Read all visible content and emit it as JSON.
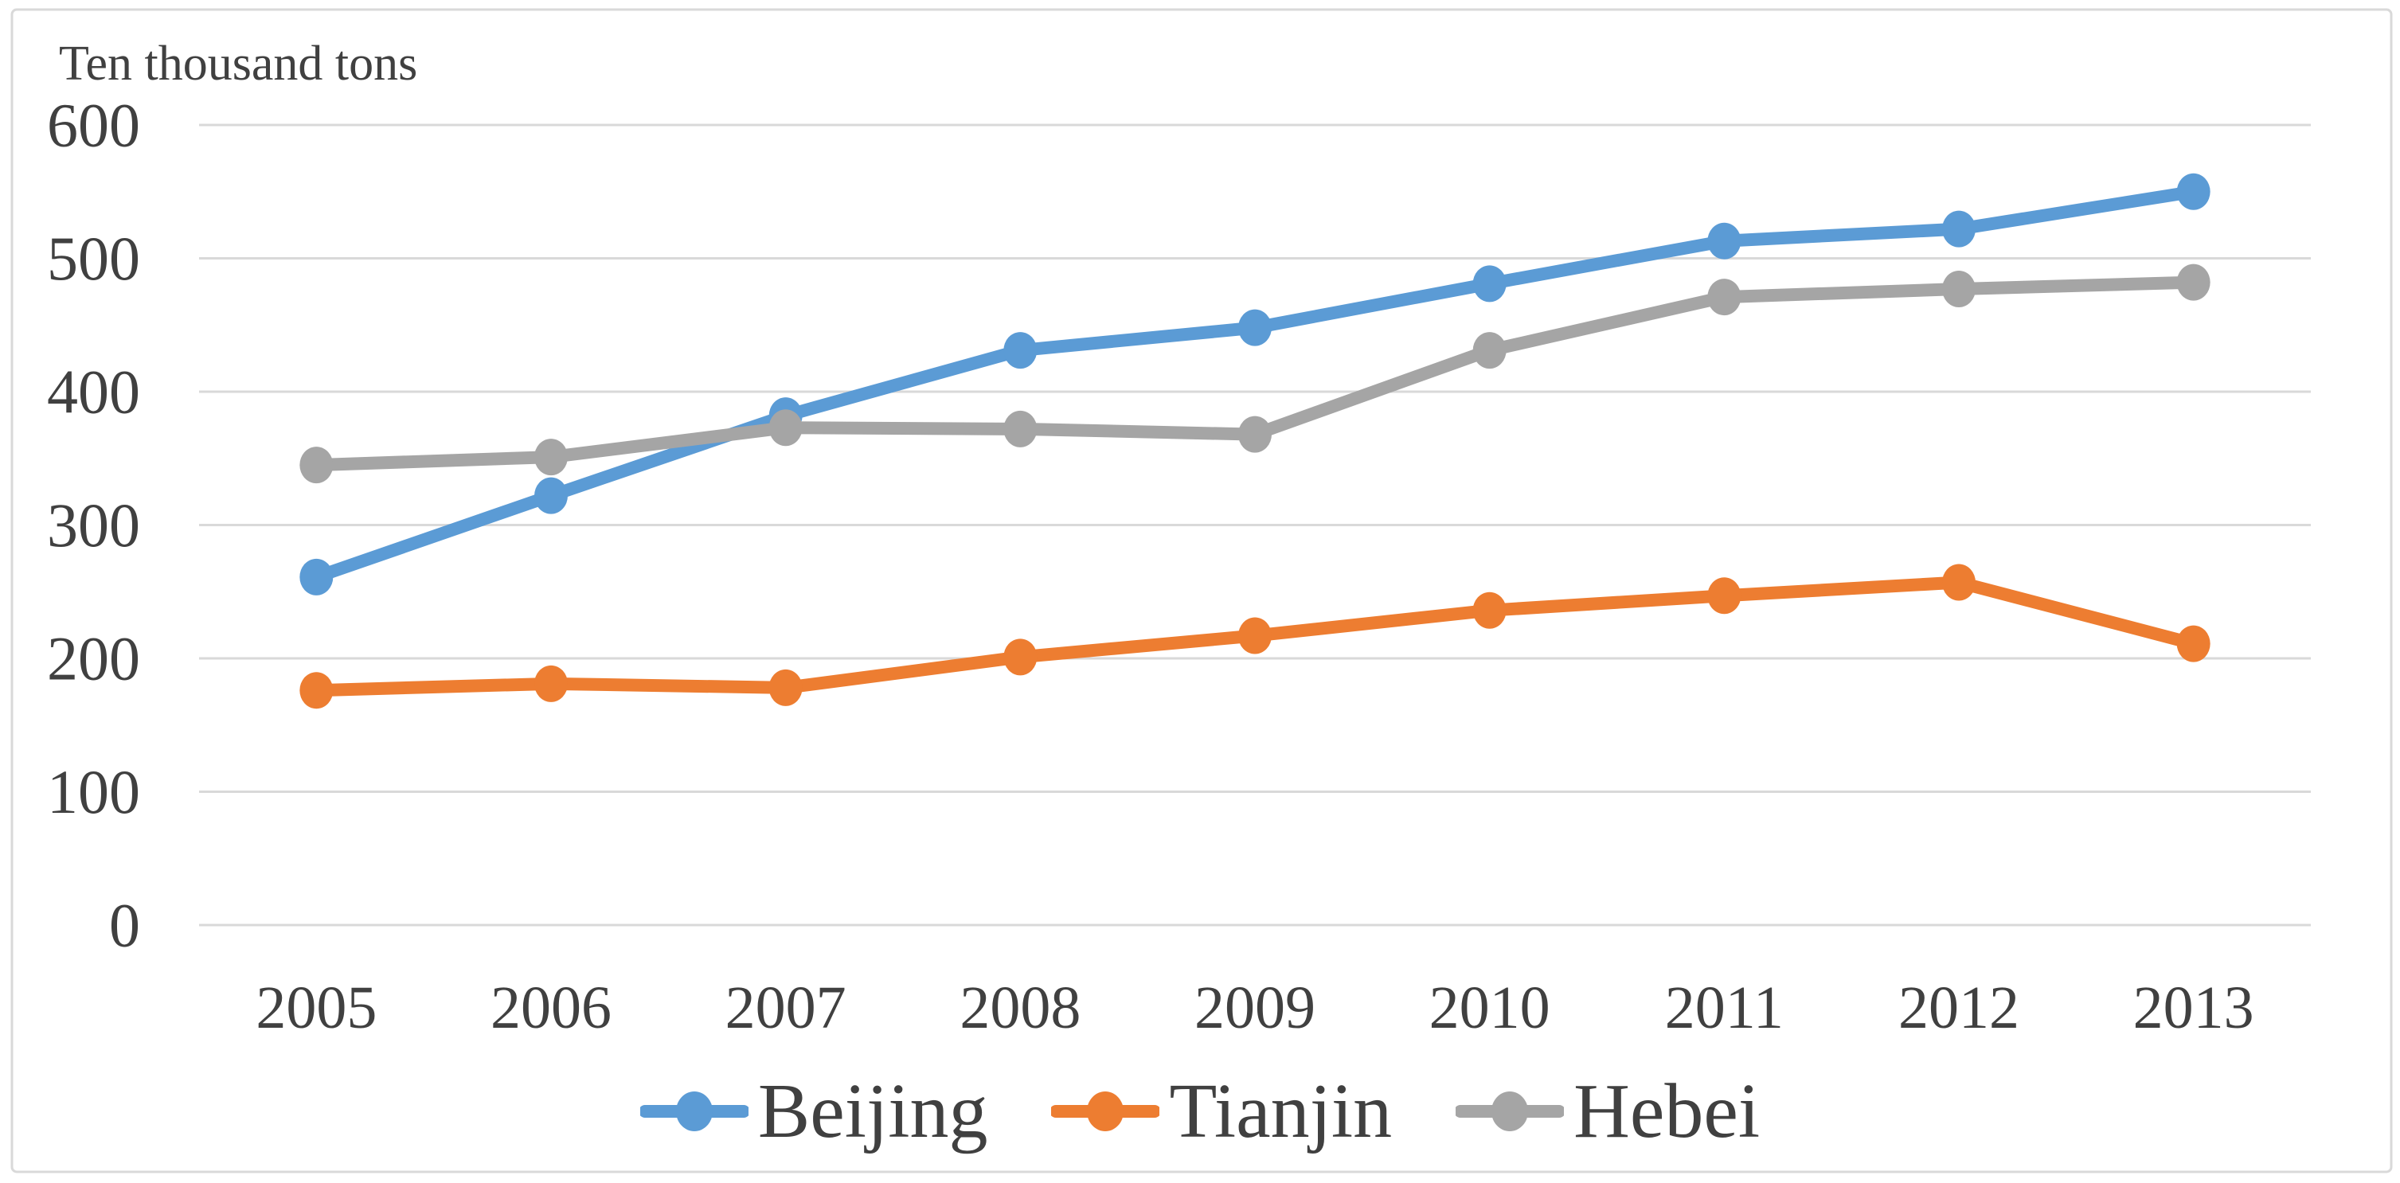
{
  "chart_data": {
    "type": "line",
    "title": "",
    "ylabel": "Ten thousand tons",
    "xlabel": "",
    "categories": [
      "2005",
      "2006",
      "2007",
      "2008",
      "2009",
      "2010",
      "2011",
      "2012",
      "2013"
    ],
    "y_ticks": [
      600,
      500,
      400,
      300,
      200,
      100,
      0
    ],
    "ylim": [
      0,
      600
    ],
    "grid": "horizontal",
    "legend_position": "bottom",
    "series": [
      {
        "name": "Beijing",
        "color": "#5B9BD5",
        "values": [
          261,
          322,
          382,
          431,
          448,
          481,
          513,
          522,
          550
        ]
      },
      {
        "name": "Tianjin",
        "color": "#ED7D31",
        "values": [
          176,
          181,
          178,
          201,
          217,
          236,
          247,
          257,
          211
        ]
      },
      {
        "name": "Hebei",
        "color": "#A5A5A5",
        "values": [
          345,
          351,
          373,
          372,
          368,
          431,
          471,
          477,
          482
        ]
      }
    ]
  },
  "colors": {
    "grid": "#D9D9D9",
    "border": "#D9D9D9",
    "text": "#404040",
    "background": "#FFFFFF"
  }
}
